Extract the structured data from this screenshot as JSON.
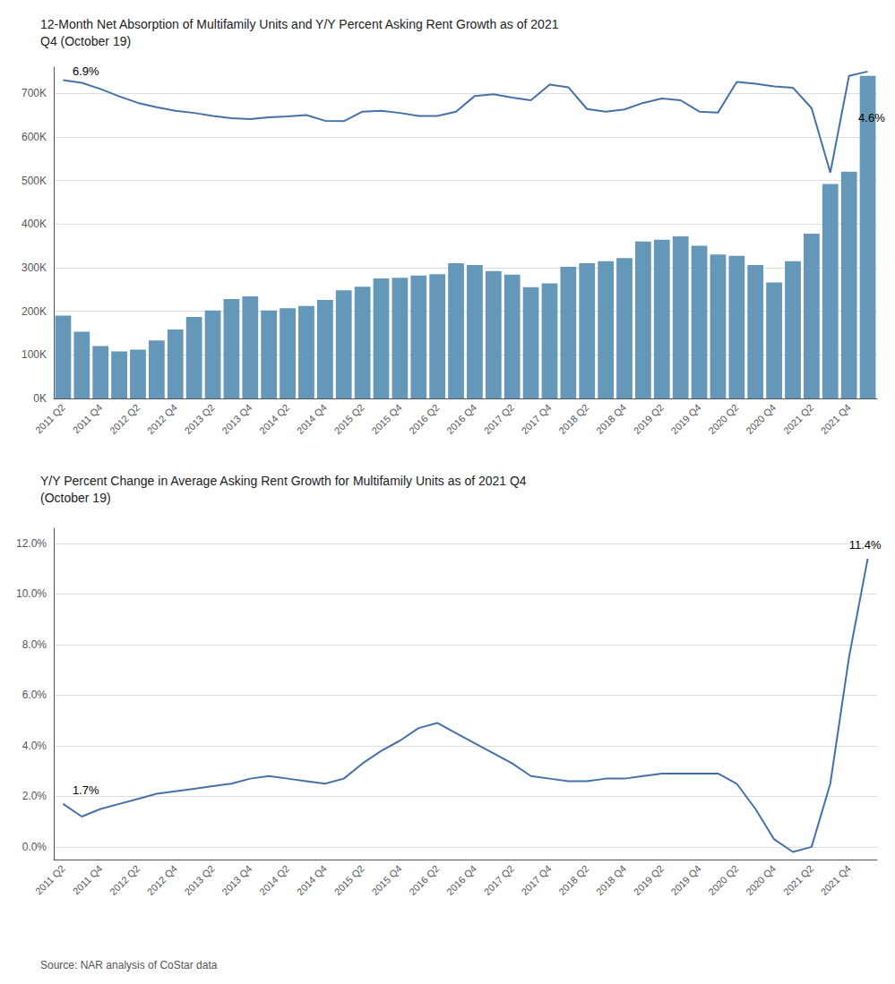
{
  "chart_data": [
    {
      "type": "bar",
      "title": "12-Month Net Absorption of Multifamily Units and Y/Y Percent Asking Rent Growth as of 2021\nQ4 (October 19)",
      "categories": [
        "2011 Q2",
        null,
        "2011 Q4",
        null,
        "2012 Q2",
        null,
        "2012 Q4",
        null,
        "2013 Q2",
        null,
        "2013 Q4",
        null,
        "2014 Q2",
        null,
        "2014 Q4",
        null,
        "2015 Q2",
        null,
        "2015 Q4",
        null,
        "2016 Q2",
        null,
        "2016 Q4",
        null,
        "2017 Q2",
        null,
        "2017 Q4",
        null,
        "2018 Q2",
        null,
        "2018 Q4",
        null,
        "2019 Q2",
        null,
        "2019 Q4",
        null,
        "2020 Q2",
        null,
        "2020 Q4",
        null,
        "2021 Q2",
        null,
        "2021 Q4",
        null
      ],
      "series": [
        {
          "type": "bar",
          "color": "#6497b8",
          "values": [
            190000,
            153000,
            120000,
            108000,
            112000,
            133000,
            158000,
            187000,
            202000,
            228000,
            234000,
            202000,
            207000,
            212000,
            226000,
            248000,
            256000,
            275000,
            277000,
            282000,
            285000,
            310000,
            306000,
            292000,
            284000,
            255000,
            264000,
            302000,
            310000,
            315000,
            322000,
            360000,
            364000,
            372000,
            350000,
            330000,
            327000,
            306000,
            266000,
            315000,
            378000,
            492000,
            520000,
            740000
          ]
        },
        {
          "type": "line",
          "color": "#4472a8",
          "values": [
            730000,
            724000,
            710000,
            693000,
            678000,
            668000,
            660000,
            655000,
            648000,
            643000,
            641000,
            645000,
            647000,
            650000,
            637000,
            636000,
            658000,
            660000,
            655000,
            648000,
            648000,
            658000,
            694000,
            698000,
            690000,
            684000,
            720000,
            714000,
            664000,
            658000,
            663000,
            678000,
            688000,
            684000,
            658000,
            656000,
            726000,
            722000,
            716000,
            713000,
            666000,
            518000,
            740000,
            750000
          ]
        }
      ],
      "ylim": [
        0,
        760000
      ],
      "yticks": [
        {
          "value": 0,
          "label": "0K"
        },
        {
          "value": 100000,
          "label": "100K"
        },
        {
          "value": 200000,
          "label": "200K"
        },
        {
          "value": 300000,
          "label": "300K"
        },
        {
          "value": 400000,
          "label": "400K"
        },
        {
          "value": 500000,
          "label": "500K"
        },
        {
          "value": 600000,
          "label": "600K"
        },
        {
          "value": 700000,
          "label": "700K"
        }
      ],
      "grid": true,
      "annotations": [
        {
          "text": "6.9%",
          "x": 0.5,
          "y": 738000
        },
        {
          "text": "4.6%",
          "x": 42.5,
          "y": 630000
        }
      ]
    },
    {
      "type": "line",
      "title": "Y/Y Percent Change in Average Asking Rent Growth for Multifamily Units as of 2021 Q4\n(October 19)",
      "categories": [
        "2011 Q2",
        null,
        "2011 Q4",
        null,
        "2012 Q2",
        null,
        "2012 Q4",
        null,
        "2013 Q2",
        null,
        "2013 Q4",
        null,
        "2014 Q2",
        null,
        "2014 Q4",
        null,
        "2015 Q2",
        null,
        "2015 Q4",
        null,
        "2016 Q2",
        null,
        "2016 Q4",
        null,
        "2017 Q2",
        null,
        "2017 Q4",
        null,
        "2018 Q2",
        null,
        "2018 Q4",
        null,
        "2019 Q2",
        null,
        "2019 Q4",
        null,
        "2020 Q2",
        null,
        "2020 Q4",
        null,
        "2021 Q2",
        null,
        "2021 Q4",
        null
      ],
      "series": [
        {
          "type": "line",
          "color": "#4472a8",
          "values": [
            1.7,
            1.2,
            1.5,
            1.7,
            1.9,
            2.1,
            2.2,
            2.3,
            2.4,
            2.5,
            2.7,
            2.8,
            2.7,
            2.6,
            2.5,
            2.7,
            3.3,
            3.8,
            4.2,
            4.7,
            4.9,
            4.5,
            4.1,
            3.7,
            3.3,
            2.8,
            2.7,
            2.6,
            2.6,
            2.7,
            2.7,
            2.8,
            2.9,
            2.9,
            2.9,
            2.9,
            2.5,
            1.5,
            0.3,
            -0.2,
            0.0,
            2.5,
            7.5,
            11.4
          ]
        }
      ],
      "ylim": [
        -0.5,
        12.6
      ],
      "yticks": [
        {
          "value": 0,
          "label": "0.0%"
        },
        {
          "value": 2,
          "label": "2.0%"
        },
        {
          "value": 4,
          "label": "4.0%"
        },
        {
          "value": 6,
          "label": "6.0%"
        },
        {
          "value": 8,
          "label": "8.0%"
        },
        {
          "value": 10,
          "label": "10.0%"
        },
        {
          "value": 12,
          "label": "12.0%"
        }
      ],
      "grid": true,
      "annotations": [
        {
          "text": "1.7%",
          "x": 0.5,
          "y": 2.0
        },
        {
          "text": "11.4%",
          "x": 42.0,
          "y": 11.7
        }
      ],
      "source": "Source: NAR analysis of CoStar data"
    }
  ]
}
